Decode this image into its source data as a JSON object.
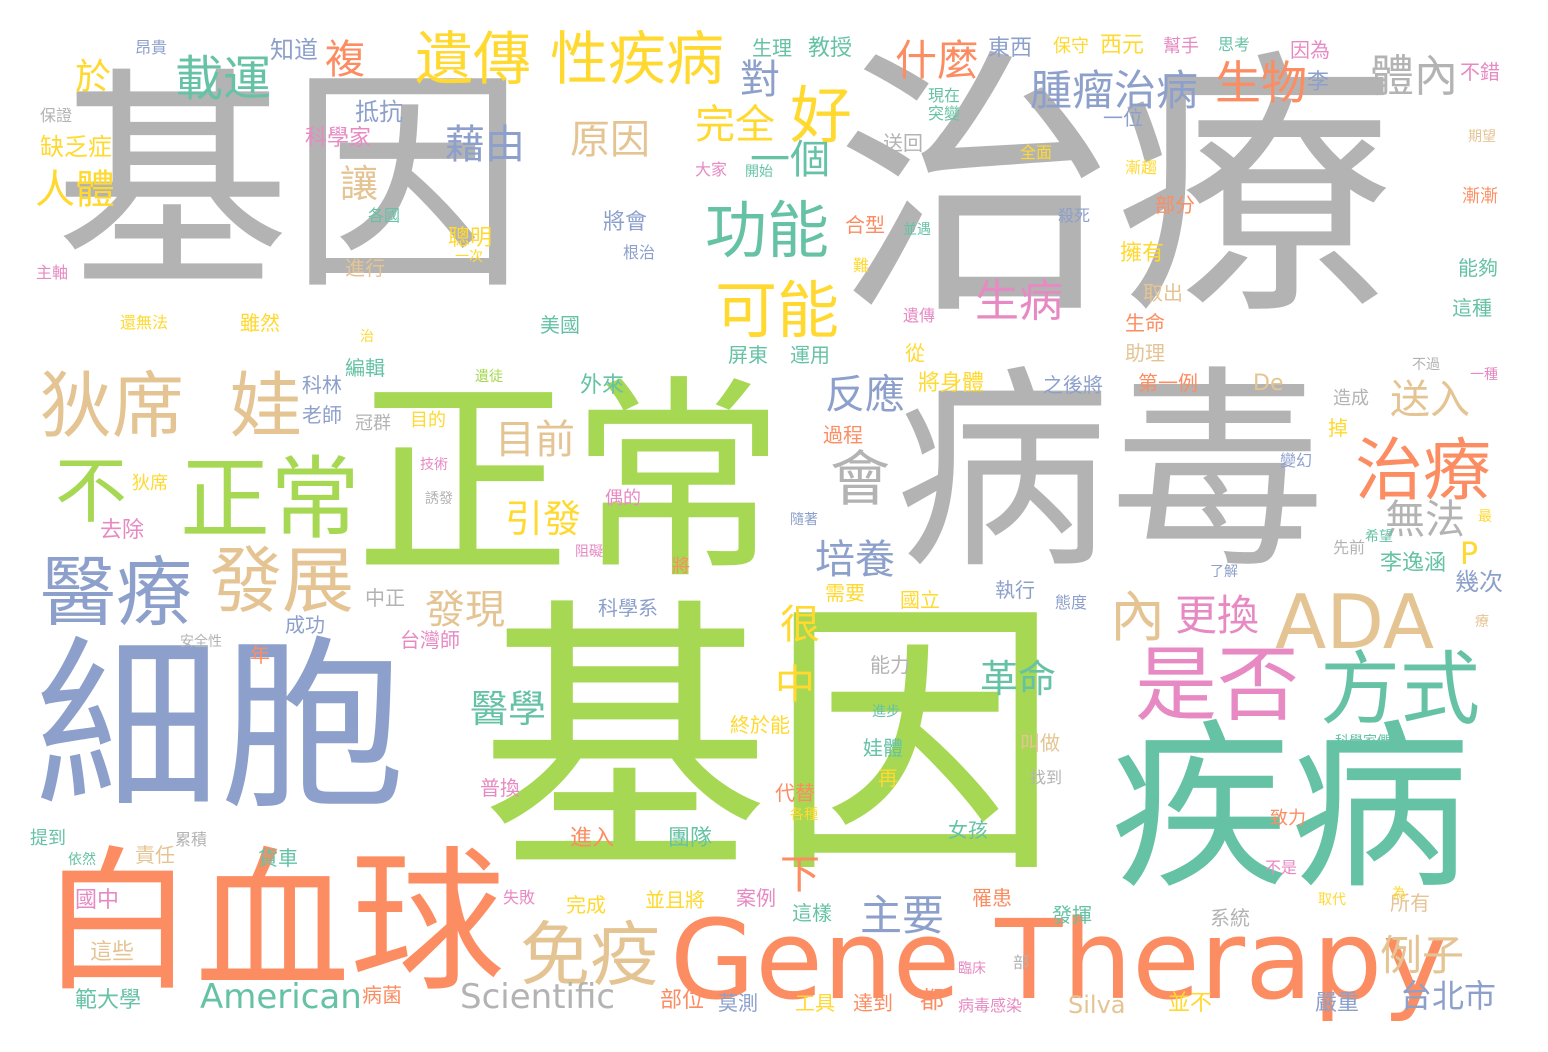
{
  "palette": {
    "gray": "#b3b3b3",
    "green": "#a6d854",
    "teal": "#66c2a5",
    "orange": "#fc8d62",
    "blue": "#8da0cb",
    "pink": "#e78ac3",
    "yellow": "#ffd92f",
    "tan": "#e5c494"
  },
  "words": [
    {
      "t": "基因",
      "c": "gray"
    },
    {
      "t": "治療",
      "c": "gray"
    },
    {
      "t": "病毒",
      "c": "gray"
    },
    {
      "t": "正常",
      "c": "green"
    },
    {
      "t": "基因",
      "c": "green"
    },
    {
      "t": "細胞",
      "c": "blue"
    },
    {
      "t": "疾病",
      "c": "teal"
    },
    {
      "t": "白血球",
      "c": "orange"
    },
    {
      "t": "Gene Therapy",
      "c": "orange"
    },
    {
      "t": "ADA",
      "c": "tan"
    },
    {
      "t": "是否",
      "c": "pink"
    },
    {
      "t": "方式",
      "c": "teal"
    },
    {
      "t": "醫療",
      "c": "blue"
    },
    {
      "t": "狄席",
      "c": "tan"
    },
    {
      "t": "娃",
      "c": "tan"
    },
    {
      "t": "不",
      "c": "green"
    },
    {
      "t": "正常",
      "c": "green"
    },
    {
      "t": "發展",
      "c": "tan"
    },
    {
      "t": "治療",
      "c": "orange"
    },
    {
      "t": "功能",
      "c": "teal"
    },
    {
      "t": "可能",
      "c": "yellow"
    },
    {
      "t": "好",
      "c": "yellow"
    },
    {
      "t": "遺傳",
      "c": "yellow"
    },
    {
      "t": "性疾病",
      "c": "yellow"
    },
    {
      "t": "載運",
      "c": "teal"
    },
    {
      "t": "什麼",
      "c": "orange"
    },
    {
      "t": "腫瘤治病",
      "c": "blue"
    },
    {
      "t": "生物",
      "c": "orange"
    },
    {
      "t": "體內",
      "c": "gray"
    },
    {
      "t": "免疫",
      "c": "tan"
    },
    {
      "t": "會",
      "c": "gray"
    },
    {
      "t": "內",
      "c": "tan"
    },
    {
      "t": "更換",
      "c": "pink"
    },
    {
      "t": "例子",
      "c": "tan"
    },
    {
      "t": "主要",
      "c": "blue"
    },
    {
      "t": "藉由",
      "c": "blue"
    },
    {
      "t": "原因",
      "c": "tan"
    },
    {
      "t": "一個",
      "c": "teal"
    },
    {
      "t": "完全",
      "c": "yellow"
    },
    {
      "t": "對",
      "c": "blue"
    },
    {
      "t": "生病",
      "c": "pink"
    },
    {
      "t": "反應",
      "c": "blue"
    },
    {
      "t": "送入",
      "c": "tan"
    },
    {
      "t": "培養",
      "c": "blue"
    },
    {
      "t": "發現",
      "c": "tan"
    },
    {
      "t": "目前",
      "c": "tan"
    },
    {
      "t": "引發",
      "c": "yellow"
    },
    {
      "t": "醫學",
      "c": "teal"
    },
    {
      "t": "革命",
      "c": "teal"
    },
    {
      "t": "無法",
      "c": "gray"
    },
    {
      "t": "人體",
      "c": "yellow"
    },
    {
      "t": "於",
      "c": "yellow"
    },
    {
      "t": "複",
      "c": "orange"
    },
    {
      "t": "讓",
      "c": "tan"
    },
    {
      "t": "中",
      "c": "yellow"
    },
    {
      "t": "很",
      "c": "yellow"
    },
    {
      "t": "下",
      "c": "orange"
    },
    {
      "t": "台北市",
      "c": "blue"
    },
    {
      "t": "American",
      "c": "teal"
    },
    {
      "t": "Scientific",
      "c": "gray"
    },
    {
      "t": "P",
      "c": "yellow"
    },
    {
      "t": "幾次",
      "c": "blue"
    },
    {
      "t": "李逸涵",
      "c": "teal"
    },
    {
      "t": "抵抗",
      "c": "blue"
    },
    {
      "t": "科學家",
      "c": "pink"
    },
    {
      "t": "缺乏症",
      "c": "yellow"
    },
    {
      "t": "知道",
      "c": "blue"
    },
    {
      "t": "昂貴",
      "c": "blue"
    },
    {
      "t": "保證",
      "c": "gray"
    },
    {
      "t": "生理",
      "c": "teal"
    },
    {
      "t": "教授",
      "c": "teal"
    },
    {
      "t": "東西",
      "c": "blue"
    },
    {
      "t": "保守",
      "c": "yellow"
    },
    {
      "t": "西元",
      "c": "yellow"
    },
    {
      "t": "幫手",
      "c": "pink"
    },
    {
      "t": "思考",
      "c": "teal"
    },
    {
      "t": "因為",
      "c": "pink"
    },
    {
      "t": "不錯",
      "c": "pink"
    },
    {
      "t": "李",
      "c": "blue"
    },
    {
      "t": "現在",
      "c": "teal"
    },
    {
      "t": "突變",
      "c": "teal"
    },
    {
      "t": "一位",
      "c": "blue"
    },
    {
      "t": "送回",
      "c": "gray"
    },
    {
      "t": "全面",
      "c": "yellow"
    },
    {
      "t": "漸趨",
      "c": "yellow"
    },
    {
      "t": "期望",
      "c": "tan"
    },
    {
      "t": "漸漸",
      "c": "orange"
    },
    {
      "t": "大家",
      "c": "pink"
    },
    {
      "t": "開始",
      "c": "teal"
    },
    {
      "t": "部分",
      "c": "orange"
    },
    {
      "t": "合型",
      "c": "orange"
    },
    {
      "t": "並遇",
      "c": "teal"
    },
    {
      "t": "殺死",
      "c": "blue"
    },
    {
      "t": "擁有",
      "c": "yellow"
    },
    {
      "t": "能夠",
      "c": "teal"
    },
    {
      "t": "取出",
      "c": "tan"
    },
    {
      "t": "這種",
      "c": "teal"
    },
    {
      "t": "生命",
      "c": "orange"
    },
    {
      "t": "助理",
      "c": "tan"
    },
    {
      "t": "遺傳",
      "c": "pink"
    },
    {
      "t": "從",
      "c": "yellow"
    },
    {
      "t": "不過",
      "c": "gray"
    },
    {
      "t": "一種",
      "c": "pink"
    },
    {
      "t": "將身體",
      "c": "yellow"
    },
    {
      "t": "之後將",
      "c": "blue"
    },
    {
      "t": "第一例",
      "c": "orange"
    },
    {
      "t": "De",
      "c": "tan"
    },
    {
      "t": "造成",
      "c": "gray"
    },
    {
      "t": "屏東",
      "c": "teal"
    },
    {
      "t": "運用",
      "c": "teal"
    },
    {
      "t": "外來",
      "c": "teal"
    },
    {
      "t": "過程",
      "c": "orange"
    },
    {
      "t": "掉",
      "c": "yellow"
    },
    {
      "t": "變幻",
      "c": "blue"
    },
    {
      "t": "聰明",
      "c": "yellow"
    },
    {
      "t": "一次",
      "c": "yellow"
    },
    {
      "t": "將會",
      "c": "blue"
    },
    {
      "t": "根治",
      "c": "blue"
    },
    {
      "t": "美國",
      "c": "teal"
    },
    {
      "t": "進行",
      "c": "tan"
    },
    {
      "t": "各國",
      "c": "teal"
    },
    {
      "t": "主軸",
      "c": "pink"
    },
    {
      "t": "還無法",
      "c": "yellow"
    },
    {
      "t": "雖然",
      "c": "yellow"
    },
    {
      "t": "治",
      "c": "yellow"
    },
    {
      "t": "編輯",
      "c": "teal"
    },
    {
      "t": "科林",
      "c": "blue"
    },
    {
      "t": "老師",
      "c": "blue"
    },
    {
      "t": "冠群",
      "c": "gray"
    },
    {
      "t": "目的",
      "c": "yellow"
    },
    {
      "t": "技術",
      "c": "pink"
    },
    {
      "t": "誘發",
      "c": "gray"
    },
    {
      "t": "偶的",
      "c": "pink"
    },
    {
      "t": "狄席",
      "c": "yellow"
    },
    {
      "t": "去除",
      "c": "pink"
    },
    {
      "t": "中正",
      "c": "gray"
    },
    {
      "t": "成功",
      "c": "blue"
    },
    {
      "t": "安全性",
      "c": "gray"
    },
    {
      "t": "年",
      "c": "orange"
    },
    {
      "t": "台灣師",
      "c": "pink"
    },
    {
      "t": "科學系",
      "c": "blue"
    },
    {
      "t": "需要",
      "c": "yellow"
    },
    {
      "t": "國立",
      "c": "yellow"
    },
    {
      "t": "執行",
      "c": "blue"
    },
    {
      "t": "態度",
      "c": "blue"
    },
    {
      "t": "了解",
      "c": "blue"
    },
    {
      "t": "希望",
      "c": "teal"
    },
    {
      "t": "能力",
      "c": "gray"
    },
    {
      "t": "娃體",
      "c": "teal"
    },
    {
      "t": "叫做",
      "c": "tan"
    },
    {
      "t": "終於能",
      "c": "yellow"
    },
    {
      "t": "代替",
      "c": "orange"
    },
    {
      "t": "再",
      "c": "yellow"
    },
    {
      "t": "找到",
      "c": "gray"
    },
    {
      "t": "科學家們",
      "c": "teal"
    },
    {
      "t": "女孩",
      "c": "teal"
    },
    {
      "t": "致力",
      "c": "orange"
    },
    {
      "t": "不是",
      "c": "pink"
    },
    {
      "t": "所有",
      "c": "tan"
    },
    {
      "t": "取代",
      "c": "yellow"
    },
    {
      "t": "為",
      "c": "yellow"
    },
    {
      "t": "普換",
      "c": "pink"
    },
    {
      "t": "進入",
      "c": "orange"
    },
    {
      "t": "團隊",
      "c": "teal"
    },
    {
      "t": "責任",
      "c": "tan"
    },
    {
      "t": "貨車",
      "c": "teal"
    },
    {
      "t": "提到",
      "c": "teal"
    },
    {
      "t": "累積",
      "c": "gray"
    },
    {
      "t": "依然",
      "c": "teal"
    },
    {
      "t": "國中",
      "c": "pink"
    },
    {
      "t": "失敗",
      "c": "pink"
    },
    {
      "t": "完成",
      "c": "yellow"
    },
    {
      "t": "並且將",
      "c": "yellow"
    },
    {
      "t": "案例",
      "c": "pink"
    },
    {
      "t": "這樣",
      "c": "teal"
    },
    {
      "t": "罹患",
      "c": "orange"
    },
    {
      "t": "發揮",
      "c": "teal"
    },
    {
      "t": "系統",
      "c": "gray"
    },
    {
      "t": "這些",
      "c": "tan"
    },
    {
      "t": "範大學",
      "c": "teal"
    },
    {
      "t": "病菌",
      "c": "orange"
    },
    {
      "t": "部位",
      "c": "orange"
    },
    {
      "t": "莫測",
      "c": "blue"
    },
    {
      "t": "工具",
      "c": "yellow"
    },
    {
      "t": "達到",
      "c": "orange"
    },
    {
      "t": "都",
      "c": "orange"
    },
    {
      "t": "病毒感染",
      "c": "pink"
    },
    {
      "t": "Silva",
      "c": "tan"
    },
    {
      "t": "並不",
      "c": "yellow"
    },
    {
      "t": "嚴重",
      "c": "blue"
    },
    {
      "t": "臨床",
      "c": "pink"
    },
    {
      "t": "部",
      "c": "gray"
    },
    {
      "t": "各種",
      "c": "yellow"
    },
    {
      "t": "阻礙",
      "c": "pink"
    },
    {
      "t": "將",
      "c": "orange"
    },
    {
      "t": "先前",
      "c": "gray"
    },
    {
      "t": "難",
      "c": "yellow"
    },
    {
      "t": "進步",
      "c": "teal"
    },
    {
      "t": "遺徒",
      "c": "green"
    },
    {
      "t": "隨著",
      "c": "blue"
    },
    {
      "t": "最",
      "c": "yellow"
    },
    {
      "t": "療",
      "c": "tan"
    }
  ]
}
